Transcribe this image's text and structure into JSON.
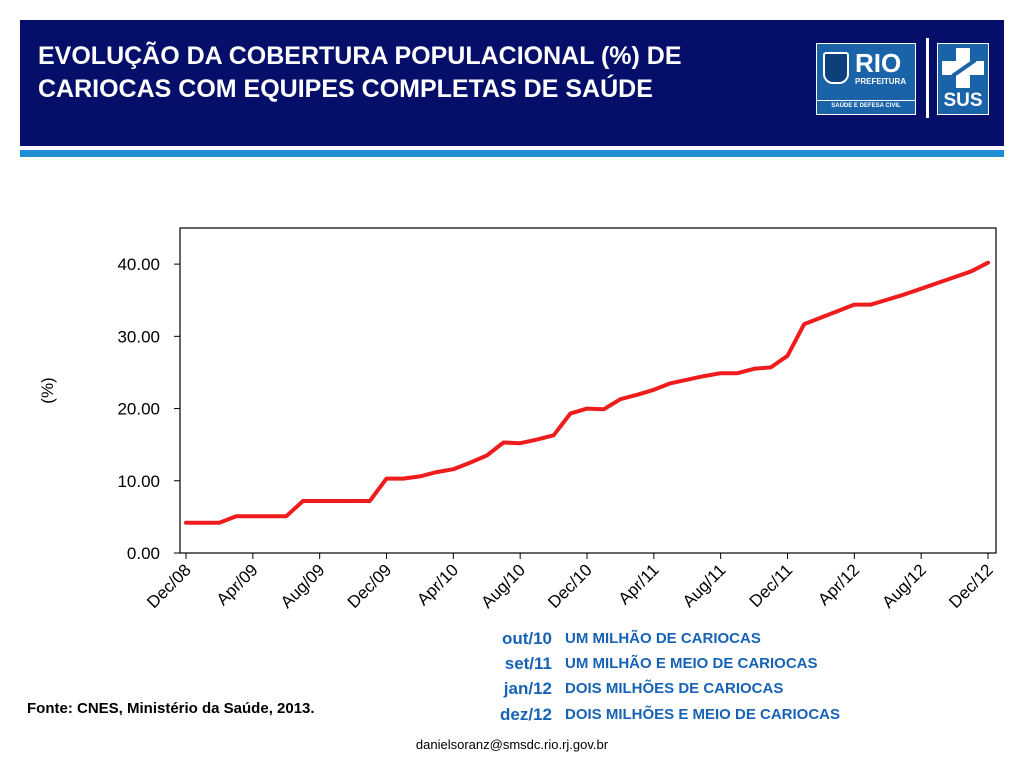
{
  "header": {
    "title_line1": "EVOLUÇÃO DA COBERTURA POPULACIONAL (%) DE",
    "title_line2": "CARIOCAS COM EQUIPES COMPLETAS DE SAÚDE",
    "background_color": "#050f6a",
    "accent_rule_color": "#1e90d2"
  },
  "logos": {
    "rio": {
      "title": "RIO",
      "subtitle": "PREFEITURA",
      "tagline": "SAÚDE E DEFESA CIVIL"
    },
    "sus": {
      "label": "SUS"
    }
  },
  "chart_data": {
    "type": "line",
    "title": "",
    "xlabel": "",
    "ylabel": "(%)",
    "ylim": [
      0,
      45
    ],
    "y_ticks": [
      "0.00",
      "10.00",
      "20.00",
      "30.00",
      "40.00"
    ],
    "y_tick_values": [
      0,
      10,
      20,
      30,
      40
    ],
    "x_tick_labels": [
      "Dec/08",
      "Apr/09",
      "Aug/09",
      "Dec/09",
      "Apr/10",
      "Aug/10",
      "Dec/10",
      "Apr/11",
      "Aug/11",
      "Dec/11",
      "Apr/12",
      "Aug/12",
      "Dec/12"
    ],
    "x_months": [
      "Dec/08",
      "Jan/09",
      "Feb/09",
      "Mar/09",
      "Apr/09",
      "May/09",
      "Jun/09",
      "Jul/09",
      "Aug/09",
      "Sep/09",
      "Oct/09",
      "Nov/09",
      "Dec/09",
      "Jan/10",
      "Feb/10",
      "Mar/10",
      "Apr/10",
      "May/10",
      "Jun/10",
      "Jul/10",
      "Aug/10",
      "Sep/10",
      "Oct/10",
      "Nov/10",
      "Dec/10",
      "Jan/11",
      "Feb/11",
      "Mar/11",
      "Apr/11",
      "May/11",
      "Jun/11",
      "Jul/11",
      "Aug/11",
      "Sep/11",
      "Oct/11",
      "Nov/11",
      "Dec/11",
      "Jan/12",
      "Feb/12",
      "Mar/12",
      "Apr/12",
      "May/12",
      "Jun/12",
      "Jul/12",
      "Aug/12",
      "Sep/12",
      "Oct/12",
      "Nov/12",
      "Dec/12"
    ],
    "series": [
      {
        "color": "#ee1c1c",
        "values": [
          4.2,
          4.2,
          4.2,
          5.1,
          5.1,
          5.1,
          5.1,
          7.2,
          7.2,
          7.2,
          7.2,
          7.2,
          10.3,
          10.3,
          10.6,
          11.2,
          11.6,
          12.5,
          13.5,
          15.3,
          15.2,
          15.7,
          16.3,
          19.3,
          20.0,
          19.9,
          21.3,
          21.9,
          22.6,
          23.5,
          24.0,
          24.5,
          24.9,
          24.9,
          25.5,
          25.7,
          27.3,
          31.7,
          32.6,
          33.5,
          34.4,
          34.4,
          35.1,
          35.8,
          36.6,
          37.4,
          38.2,
          39.0,
          40.2
        ]
      }
    ],
    "grid": false,
    "legend": "none"
  },
  "milestones": [
    {
      "date": "out/10",
      "text": "UM MILHÃO DE CARIOCAS"
    },
    {
      "date": "set/11",
      "text": "UM MILHÃO E MEIO DE CARIOCAS"
    },
    {
      "date": "jan/12",
      "text": "DOIS MILHÕES DE CARIOCAS"
    },
    {
      "date": "dez/12",
      "text": "DOIS MILHÕES E MEIO DE CARIOCAS"
    }
  ],
  "milestone_color": "#1663b6",
  "source": "Fonte: CNES, Ministério da Saúde, 2013.",
  "email": "danielsoranz@smsdc.rio.rj.gov.br"
}
